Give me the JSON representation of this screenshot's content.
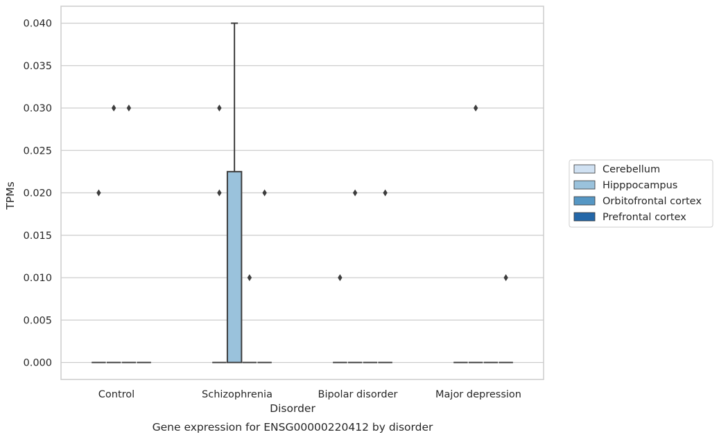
{
  "chart_data": {
    "type": "box",
    "title": "",
    "caption": "Gene expression for ENSG00000220412 by disorder",
    "xlabel": "Disorder",
    "ylabel": "TPMs",
    "ylim": [
      -0.002,
      0.042
    ],
    "yticks": [
      0.0,
      0.005,
      0.01,
      0.015,
      0.02,
      0.025,
      0.03,
      0.035,
      0.04
    ],
    "ytick_labels": [
      "0.000",
      "0.005",
      "0.010",
      "0.015",
      "0.020",
      "0.025",
      "0.030",
      "0.035",
      "0.040"
    ],
    "grid": "horizontal",
    "legend_position": "right",
    "categories": [
      "Control",
      "Schizophrenia",
      "Bipolar disorder",
      "Major depression"
    ],
    "series": [
      {
        "name": "Cerebellum",
        "color": "#d0e1f2",
        "boxes": [
          {
            "category": "Control",
            "q1": 0,
            "median": 0,
            "q3": 0,
            "whisker_low": 0,
            "whisker_high": 0,
            "outliers": [
              0.02
            ]
          },
          {
            "category": "Schizophrenia",
            "q1": 0,
            "median": 0,
            "q3": 0,
            "whisker_low": 0,
            "whisker_high": 0,
            "outliers": [
              0.03,
              0.02
            ]
          },
          {
            "category": "Bipolar disorder",
            "q1": 0,
            "median": 0,
            "q3": 0,
            "whisker_low": 0,
            "whisker_high": 0,
            "outliers": [
              0.01
            ]
          },
          {
            "category": "Major depression",
            "q1": 0,
            "median": 0,
            "q3": 0,
            "whisker_low": 0,
            "whisker_high": 0,
            "outliers": []
          }
        ]
      },
      {
        "name": "Hipppocampus",
        "color": "#9ac2dc",
        "boxes": [
          {
            "category": "Control",
            "q1": 0,
            "median": 0,
            "q3": 0,
            "whisker_low": 0,
            "whisker_high": 0,
            "outliers": [
              0.03
            ]
          },
          {
            "category": "Schizophrenia",
            "q1": 0,
            "median": 0,
            "q3": 0.0225,
            "whisker_low": 0,
            "whisker_high": 0.04,
            "outliers": []
          },
          {
            "category": "Bipolar disorder",
            "q1": 0,
            "median": 0,
            "q3": 0,
            "whisker_low": 0,
            "whisker_high": 0,
            "outliers": [
              0.02
            ]
          },
          {
            "category": "Major depression",
            "q1": 0,
            "median": 0,
            "q3": 0,
            "whisker_low": 0,
            "whisker_high": 0,
            "outliers": [
              0.03
            ]
          }
        ]
      },
      {
        "name": "Orbitofrontal cortex",
        "color": "#5697c4",
        "boxes": [
          {
            "category": "Control",
            "q1": 0,
            "median": 0,
            "q3": 0,
            "whisker_low": 0,
            "whisker_high": 0,
            "outliers": [
              0.03
            ]
          },
          {
            "category": "Schizophrenia",
            "q1": 0,
            "median": 0,
            "q3": 0,
            "whisker_low": 0,
            "whisker_high": 0,
            "outliers": [
              0.01
            ]
          },
          {
            "category": "Bipolar disorder",
            "q1": 0,
            "median": 0,
            "q3": 0,
            "whisker_low": 0,
            "whisker_high": 0,
            "outliers": []
          },
          {
            "category": "Major depression",
            "q1": 0,
            "median": 0,
            "q3": 0,
            "whisker_low": 0,
            "whisker_high": 0,
            "outliers": []
          }
        ]
      },
      {
        "name": "Prefrontal cortex",
        "color": "#2467a8",
        "boxes": [
          {
            "category": "Control",
            "q1": 0,
            "median": 0,
            "q3": 0,
            "whisker_low": 0,
            "whisker_high": 0,
            "outliers": []
          },
          {
            "category": "Schizophrenia",
            "q1": 0,
            "median": 0,
            "q3": 0,
            "whisker_low": 0,
            "whisker_high": 0,
            "outliers": [
              0.02
            ]
          },
          {
            "category": "Bipolar disorder",
            "q1": 0,
            "median": 0,
            "q3": 0,
            "whisker_low": 0,
            "whisker_high": 0,
            "outliers": [
              0.02
            ]
          },
          {
            "category": "Major depression",
            "q1": 0,
            "median": 0,
            "q3": 0,
            "whisker_low": 0,
            "whisker_high": 0,
            "outliers": [
              0.01
            ]
          }
        ]
      }
    ]
  }
}
